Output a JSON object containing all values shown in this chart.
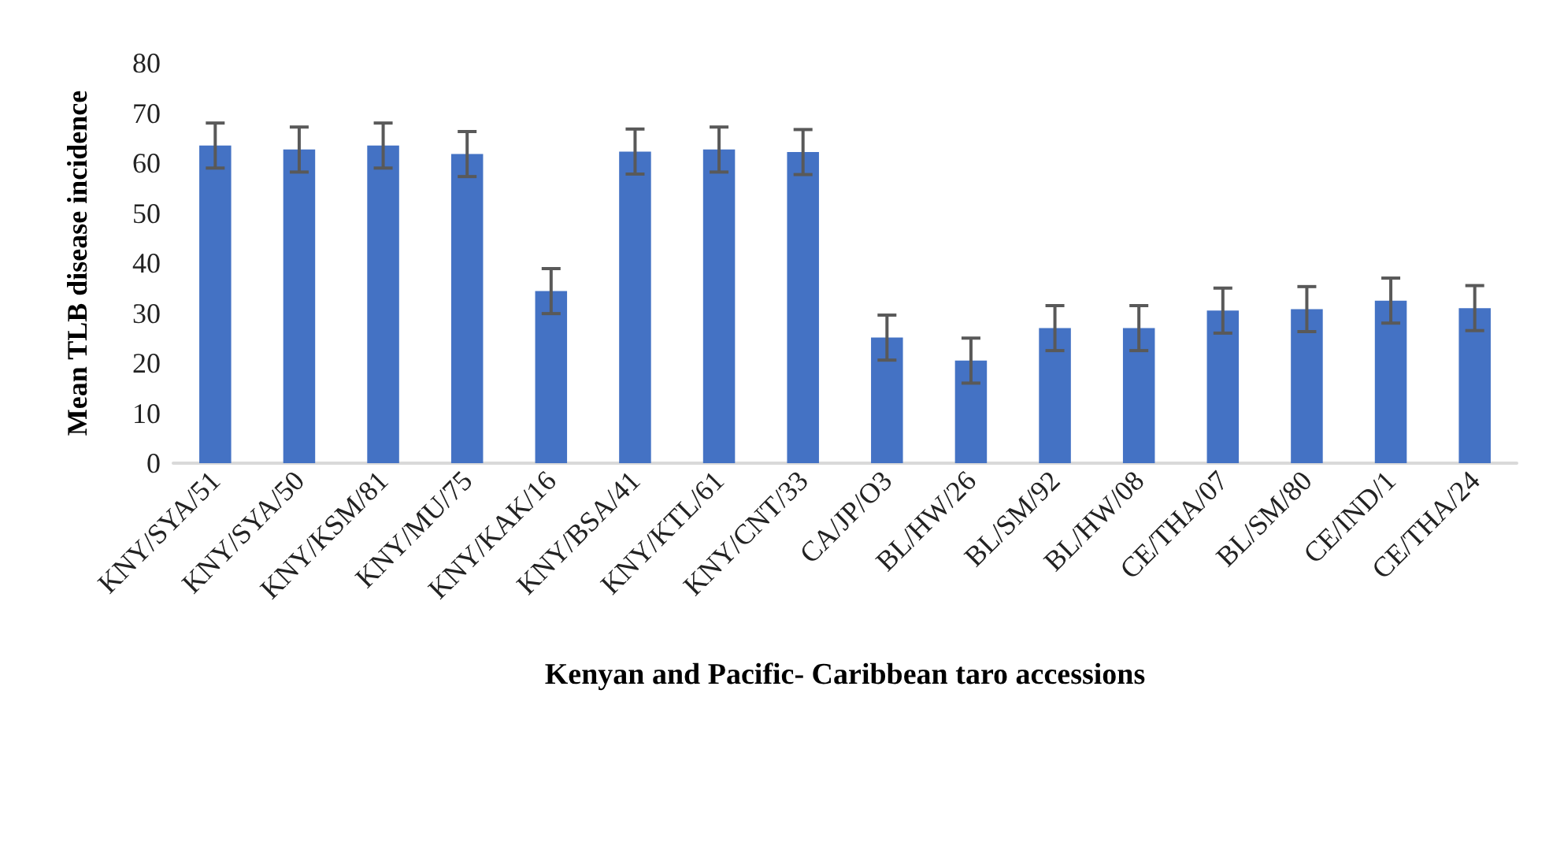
{
  "chart_data": {
    "type": "bar",
    "xlabel": "Kenyan and Pacific- Caribbean taro accessions",
    "ylabel": "Mean TLB disease incidence",
    "categories": [
      "KNY/SYA/51",
      "KNY/SYA/50",
      "KNY/KSM/81",
      "KNY/MU/75",
      "KNY/KAK/16",
      "KNY/BSA/41",
      "KNY/KTL/61",
      "KNY/CNT/33",
      "CA/JP/O3",
      "BL/HW/26",
      "BL/SM/92",
      "BL/HW/08",
      "CE/THA/07",
      "BL/SM/80",
      "CE/IND/1",
      "CE/THA/24"
    ],
    "values": [
      63.5,
      62.7,
      63.5,
      61.8,
      34.4,
      62.3,
      62.7,
      62.2,
      25.1,
      20.5,
      27.0,
      27.0,
      30.5,
      30.8,
      32.5,
      31.0
    ],
    "errors": [
      4.5,
      4.5,
      4.5,
      4.5,
      4.5,
      4.5,
      4.5,
      4.5,
      4.5,
      4.5,
      4.5,
      4.5,
      4.5,
      4.5,
      4.5,
      4.5
    ],
    "color": "#4472c4",
    "ylim": [
      0,
      80
    ],
    "yticks": [
      0,
      10,
      20,
      30,
      40,
      50,
      60,
      70,
      80
    ],
    "grid": false
  }
}
